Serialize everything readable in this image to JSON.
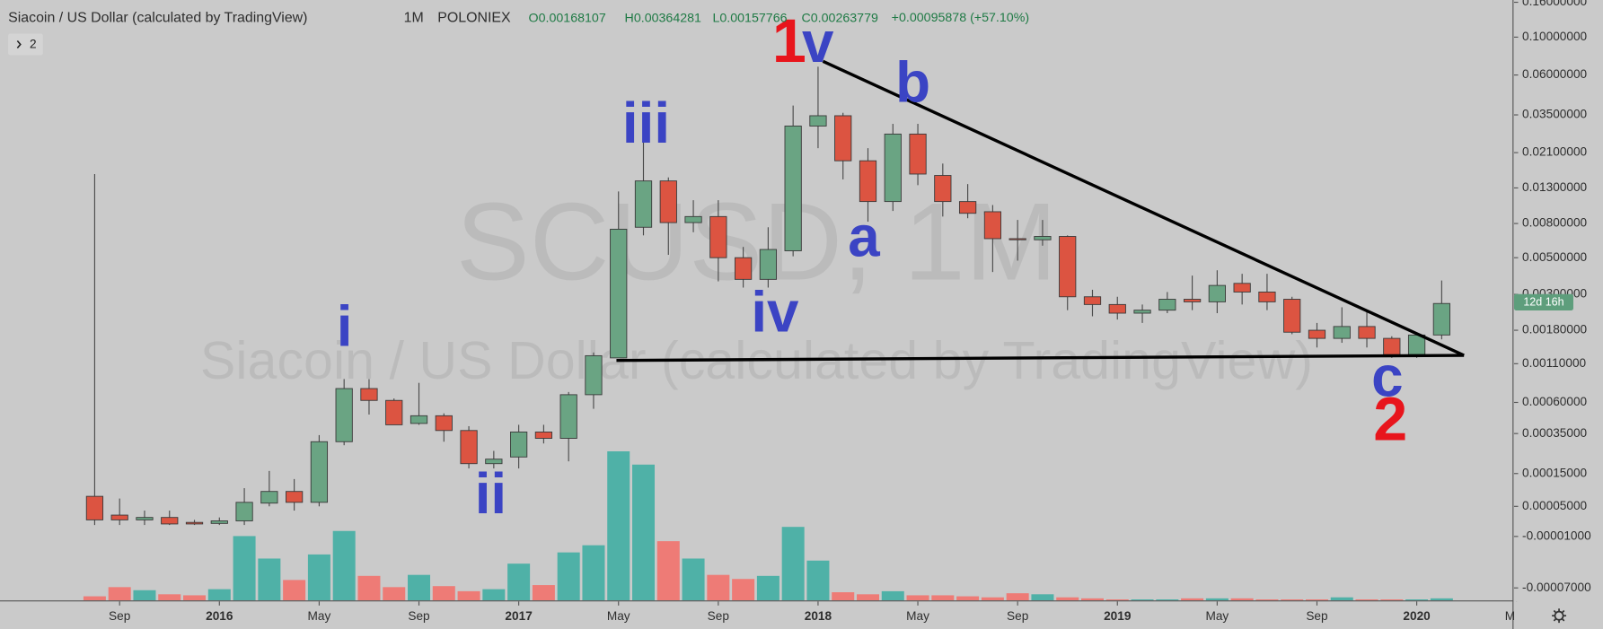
{
  "chart_data": {
    "type": "candlestick",
    "title": "Siacoin / US Dollar (calculated by TradingView)",
    "interval": "1M",
    "exchange": "POLONIEX",
    "ohlc_labels": [
      "O",
      "H",
      "L",
      "C"
    ],
    "change": "+0.00095878 (+57.10%)",
    "indicator_count": 2,
    "watermark": "SCUSD, 1M",
    "countdown": "12d 16h",
    "scale": "log",
    "x": [
      "2015-08",
      "2015-09",
      "2015-10",
      "2015-11",
      "2015-12",
      "2016-01",
      "2016-02",
      "2016-03",
      "2016-04",
      "2016-05",
      "2016-06",
      "2016-07",
      "2016-08",
      "2016-09",
      "2016-10",
      "2016-11",
      "2016-12",
      "2017-01",
      "2017-02",
      "2017-03",
      "2017-04",
      "2017-05",
      "2017-06",
      "2017-07",
      "2017-08",
      "2017-09",
      "2017-10",
      "2017-11",
      "2017-12",
      "2018-01",
      "2018-02",
      "2018-03",
      "2018-04",
      "2018-05",
      "2018-06",
      "2018-07",
      "2018-08",
      "2018-09",
      "2018-10",
      "2018-11",
      "2018-12",
      "2019-01",
      "2019-02",
      "2019-03",
      "2019-04",
      "2019-05",
      "2019-06",
      "2019-07",
      "2019-08",
      "2019-09",
      "2019-10",
      "2019-11",
      "2019-12",
      "2020-01",
      "2020-02"
    ],
    "open": [
      7.6e-05,
      3e-05,
      2e-05,
      2.5e-05,
      1.5e-05,
      1.3e-05,
      1.8e-05,
      5.8e-05,
      9e-05,
      6e-05,
      0.0003,
      0.00075,
      0.00062,
      0.00042,
      0.00048,
      0.00037,
      0.00019,
      0.00022,
      0.00036,
      0.00032,
      0.00068,
      0.0012,
      0.0076,
      0.0143,
      0.0081,
      0.0088,
      0.005,
      0.0037,
      0.0055,
      0.0301,
      0.0346,
      0.0188,
      0.0108,
      0.027,
      0.0154,
      0.0108,
      0.0094,
      0.0065,
      0.0064,
      0.0067,
      0.0029,
      0.0026,
      0.0023,
      0.0024,
      0.0028,
      0.0027,
      0.0035,
      0.0031,
      0.0028,
      0.0018,
      0.0016,
      0.0019,
      0.0016,
      0.00126,
      0.00168107
    ],
    "high": [
      0.0157,
      7e-05,
      4e-05,
      4e-05,
      2e-05,
      2.5e-05,
      0.0001,
      0.00016,
      0.00013,
      0.00034,
      0.00087,
      0.00087,
      0.00064,
      0.00082,
      0.0005,
      0.0004,
      0.00025,
      0.00041,
      0.00041,
      0.00071,
      0.0013,
      0.0124,
      0.0274,
      0.015,
      0.011,
      0.011,
      0.0058,
      0.0076,
      0.0397,
      0.0671,
      0.036,
      0.0223,
      0.031,
      0.031,
      0.0181,
      0.0137,
      0.0103,
      0.0084,
      0.0084,
      0.0068,
      0.0032,
      0.0029,
      0.0026,
      0.0031,
      0.0039,
      0.0042,
      0.004,
      0.004,
      0.0029,
      0.002,
      0.0025,
      0.0024,
      0.00165,
      0.0017,
      0.00364281
    ],
    "low": [
      1e-05,
      1e-05,
      1e-05,
      1e-05,
      1e-05,
      1e-05,
      1e-05,
      5e-05,
      4e-05,
      5e-05,
      0.00028,
      0.00049,
      0.00041,
      0.00041,
      0.0003,
      0.00017,
      0.00017,
      0.00017,
      0.00029,
      0.0002,
      0.00054,
      0.0012,
      0.0068,
      0.0052,
      0.0071,
      0.0036,
      0.0033,
      0.0033,
      0.0051,
      0.0223,
      0.0146,
      0.0082,
      0.0095,
      0.0135,
      0.0088,
      0.0086,
      0.0041,
      0.0048,
      0.0059,
      0.0024,
      0.0022,
      0.0021,
      0.002,
      0.0023,
      0.0024,
      0.0023,
      0.0026,
      0.0024,
      0.0017,
      0.0014,
      0.0015,
      0.0014,
      0.0012,
      0.0012,
      0.00157766
    ],
    "close": [
      2e-05,
      2e-05,
      2.5e-05,
      1.2e-05,
      1.2e-05,
      1.8e-05,
      6e-05,
      9e-05,
      6e-05,
      0.0003,
      0.00075,
      0.00062,
      0.00041,
      0.00048,
      0.00037,
      0.00019,
      0.00021,
      0.00036,
      0.00032,
      0.00068,
      0.00124,
      0.0074,
      0.0143,
      0.0081,
      0.0088,
      0.005,
      0.0037,
      0.0056,
      0.0301,
      0.0346,
      0.0188,
      0.0108,
      0.027,
      0.0157,
      0.0108,
      0.0092,
      0.0065,
      0.0064,
      0.0067,
      0.0029,
      0.0026,
      0.0023,
      0.0024,
      0.0028,
      0.0027,
      0.0034,
      0.0031,
      0.0027,
      0.00175,
      0.0016,
      0.0019,
      0.0016,
      0.00126,
      0.00168,
      0.00263779
    ],
    "volume": [
      4,
      13,
      10,
      6,
      5,
      11,
      63,
      41,
      20,
      45,
      68,
      24,
      13,
      25,
      14,
      9,
      11,
      36,
      15,
      47,
      54,
      146,
      133,
      58,
      41,
      25,
      21,
      24,
      72,
      39,
      8,
      6,
      9,
      5,
      5,
      4,
      3,
      7,
      6,
      3,
      2,
      1,
      1,
      1,
      2,
      2,
      2,
      1,
      1,
      1,
      3,
      1,
      1,
      1,
      2
    ],
    "up_color": "#6aa483",
    "down_color": "#dc5441",
    "volume_up_color": "#4fb1a7",
    "volume_down_color": "#ee7b76",
    "xlim": [
      "2015-04",
      "2020-05"
    ],
    "xticks": [
      {
        "value": "2015-09",
        "label": "Sep"
      },
      {
        "value": "2016-01",
        "label": "2016"
      },
      {
        "value": "2016-05",
        "label": "May"
      },
      {
        "value": "2016-09",
        "label": "Sep"
      },
      {
        "value": "2017-01",
        "label": "2017"
      },
      {
        "value": "2017-05",
        "label": "May"
      },
      {
        "value": "2017-09",
        "label": "Sep"
      },
      {
        "value": "2018-01",
        "label": "2018"
      },
      {
        "value": "2018-05",
        "label": "May"
      },
      {
        "value": "2018-09",
        "label": "Sep"
      },
      {
        "value": "2019-01",
        "label": "2019"
      },
      {
        "value": "2019-05",
        "label": "May"
      },
      {
        "value": "2019-09",
        "label": "Sep"
      },
      {
        "value": "2020-01",
        "label": "2020"
      },
      {
        "value": "2020-05",
        "label": "May"
      }
    ],
    "ylim": [
      -8e-05,
      0.165
    ],
    "yticks": [
      {
        "value": 0.16,
        "label": "0.16000000"
      },
      {
        "value": 0.1,
        "label": "0.10000000"
      },
      {
        "value": 0.06,
        "label": "0.06000000"
      },
      {
        "value": 0.035,
        "label": "0.03500000"
      },
      {
        "value": 0.021,
        "label": "0.02100000"
      },
      {
        "value": 0.013,
        "label": "0.01300000"
      },
      {
        "value": 0.008,
        "label": "0.00800000"
      },
      {
        "value": 0.005,
        "label": "0.00500000"
      },
      {
        "value": 0.003,
        "label": "0.00300000"
      },
      {
        "value": 0.0018,
        "label": "0.00180000"
      },
      {
        "value": 0.0011,
        "label": "0.00110000"
      },
      {
        "value": 0.0006,
        "label": "0.00060000"
      },
      {
        "value": 0.00035,
        "label": "0.00035000"
      },
      {
        "value": 0.00015,
        "label": "0.00015000"
      },
      {
        "value": 5e-05,
        "label": "0.00005000"
      },
      {
        "value": -1e-05,
        "label": "-0.00001000"
      },
      {
        "value": -7e-05,
        "label": "-0.00007000"
      }
    ],
    "annotations": [
      {
        "text": "1",
        "color": "#e8151c"
      },
      {
        "text": "v",
        "color": "#3b44c4"
      },
      {
        "text": "b",
        "color": "#3b44c4"
      },
      {
        "text": "iii",
        "color": "#3b44c4"
      },
      {
        "text": "a",
        "color": "#3b44c4"
      },
      {
        "text": "iv",
        "color": "#3b44c4"
      },
      {
        "text": "i",
        "color": "#3b44c4"
      },
      {
        "text": "ii",
        "color": "#3b44c4"
      },
      {
        "text": "c",
        "color": "#3b44c4"
      },
      {
        "text": "2",
        "color": "#e8151c"
      }
    ]
  }
}
